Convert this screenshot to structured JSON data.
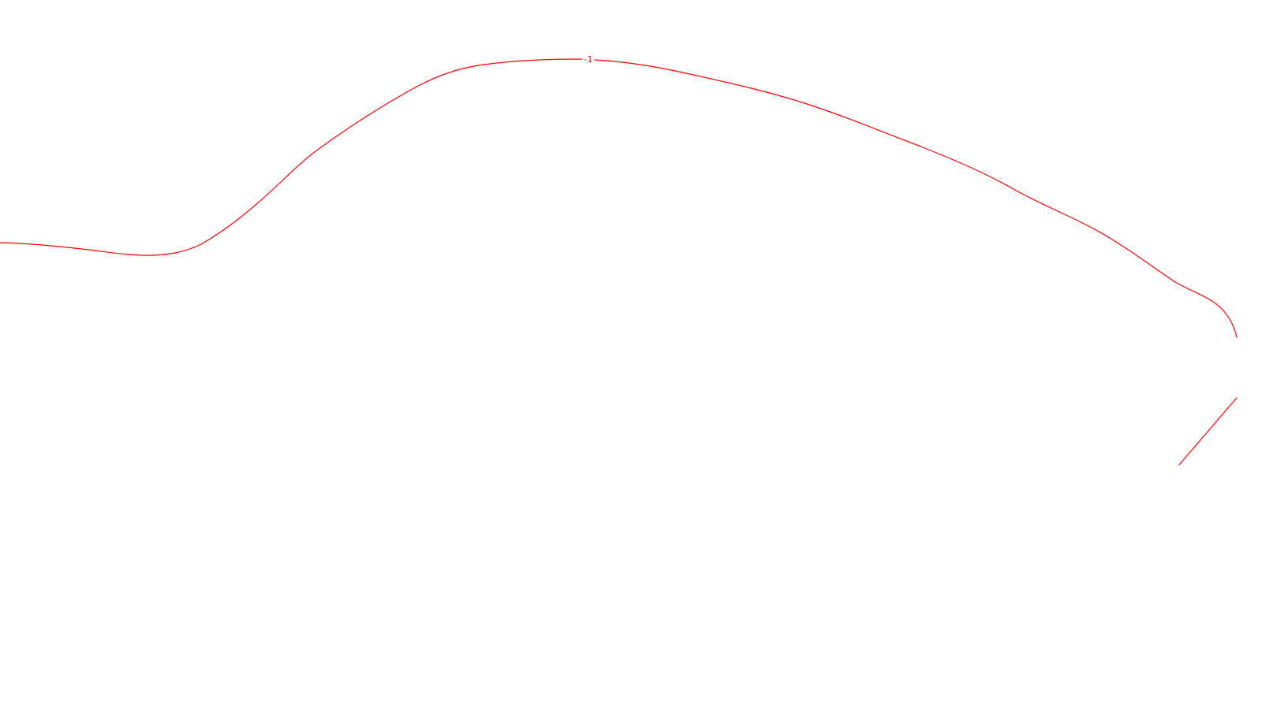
{
  "map": {
    "background_color": "#ffffff",
    "line_color": "#ff0000",
    "contours": [
      {
        "label": "-1"
      }
    ]
  }
}
